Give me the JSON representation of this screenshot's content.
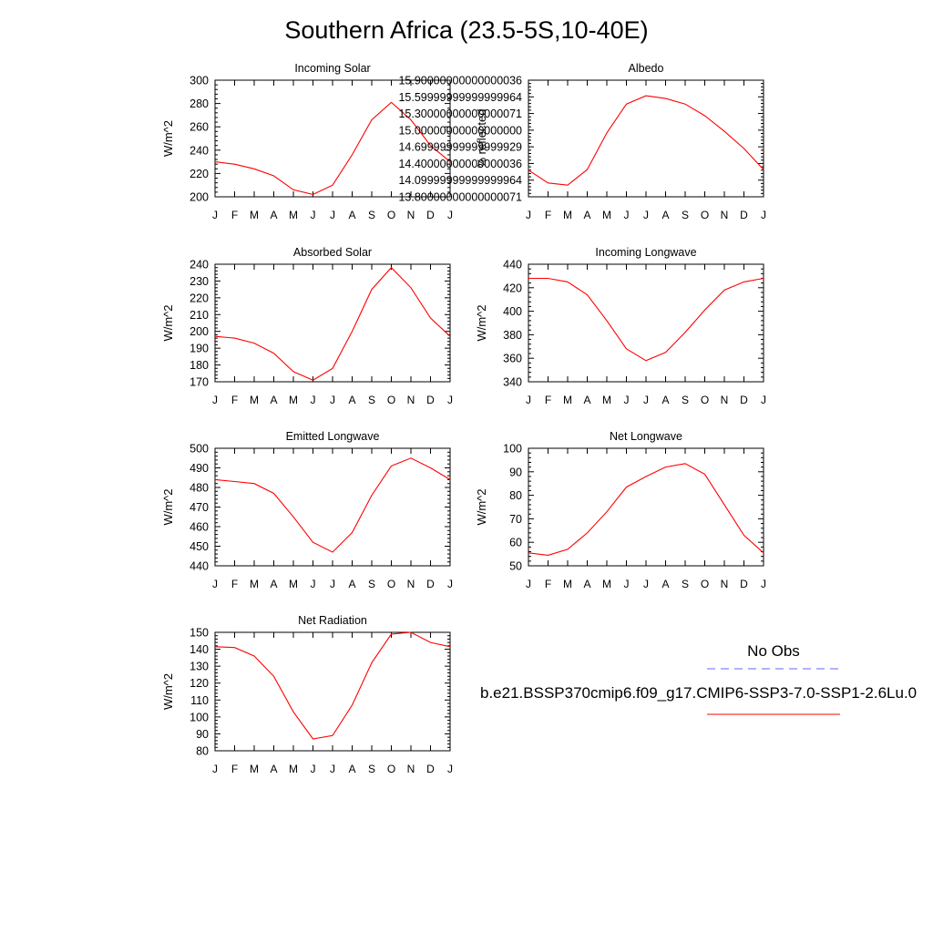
{
  "title": "Southern Africa (23.5-5S,10-40E)",
  "legend": {
    "obs_label": "No Obs",
    "obs_color": "#6666ff",
    "model_label": "b.e21.BSSP370cmip6.f09_g17.CMIP6-SSP3-7.0-SSP1-2.6Lu.0",
    "model_color": "#ff0000"
  },
  "chart_data": [
    {
      "type": "line",
      "title": "Incoming Solar",
      "ylabel": "W/m^2",
      "categories": [
        "J",
        "F",
        "M",
        "A",
        "M",
        "J",
        "J",
        "A",
        "S",
        "O",
        "N",
        "D",
        "J"
      ],
      "ylim": [
        200,
        300
      ],
      "yticks": [
        200,
        220,
        240,
        260,
        280,
        300
      ],
      "series": [
        {
          "values": [
            230,
            228,
            224,
            218,
            206,
            202,
            210,
            236,
            266,
            281,
            266,
            244,
            230
          ]
        }
      ]
    },
    {
      "type": "line",
      "title": "Albedo",
      "ylabel": "% reflected",
      "categories": [
        "J",
        "F",
        "M",
        "A",
        "M",
        "J",
        "J",
        "A",
        "S",
        "O",
        "N",
        "D",
        "J"
      ],
      "ylim": [
        13.8,
        15.9
      ],
      "yticks": [
        13.8,
        14.1,
        14.4,
        14.7,
        15.0,
        15.3,
        15.6,
        15.9
      ],
      "series": [
        {
          "values": [
            14.28,
            14.05,
            14.01,
            14.29,
            14.95,
            15.47,
            15.62,
            15.57,
            15.47,
            15.26,
            14.98,
            14.67,
            14.29
          ]
        }
      ]
    },
    {
      "type": "line",
      "title": "Absorbed Solar",
      "ylabel": "W/m^2",
      "categories": [
        "J",
        "F",
        "M",
        "A",
        "M",
        "J",
        "J",
        "A",
        "S",
        "O",
        "N",
        "D",
        "J"
      ],
      "ylim": [
        170,
        240
      ],
      "yticks": [
        170,
        180,
        190,
        200,
        210,
        220,
        230,
        240
      ],
      "series": [
        {
          "values": [
            197,
            196,
            193,
            187,
            176,
            171,
            178,
            200,
            225,
            238,
            226,
            208,
            197
          ]
        }
      ]
    },
    {
      "type": "line",
      "title": "Incoming Longwave",
      "ylabel": "W/m^2",
      "categories": [
        "J",
        "F",
        "M",
        "A",
        "M",
        "J",
        "J",
        "A",
        "S",
        "O",
        "N",
        "D",
        "J"
      ],
      "ylim": [
        340,
        440
      ],
      "yticks": [
        340,
        360,
        380,
        400,
        420,
        440
      ],
      "series": [
        {
          "values": [
            428,
            428,
            425,
            414,
            392,
            368,
            358,
            365,
            382,
            401,
            418,
            425,
            428
          ]
        }
      ]
    },
    {
      "type": "line",
      "title": "Emitted Longwave",
      "ylabel": "W/m^2",
      "categories": [
        "J",
        "F",
        "M",
        "A",
        "M",
        "J",
        "J",
        "A",
        "S",
        "O",
        "N",
        "D",
        "J"
      ],
      "ylim": [
        440,
        500
      ],
      "yticks": [
        440,
        450,
        460,
        470,
        480,
        490,
        500
      ],
      "series": [
        {
          "values": [
            484,
            483,
            482,
            477,
            465,
            452,
            447,
            457,
            476,
            491,
            495,
            490,
            484
          ]
        }
      ]
    },
    {
      "type": "line",
      "title": "Net Longwave",
      "ylabel": "W/m^2",
      "categories": [
        "J",
        "F",
        "M",
        "A",
        "M",
        "J",
        "J",
        "A",
        "S",
        "O",
        "N",
        "D",
        "J"
      ],
      "ylim": [
        50,
        100
      ],
      "yticks": [
        50,
        60,
        70,
        80,
        90,
        100
      ],
      "series": [
        {
          "values": [
            55.5,
            54.5,
            57,
            64,
            73,
            83.5,
            88,
            92,
            93.5,
            89,
            76,
            63,
            55.5
          ]
        }
      ]
    },
    {
      "type": "line",
      "title": "Net Radiation",
      "ylabel": "W/m^2",
      "categories": [
        "J",
        "F",
        "M",
        "A",
        "M",
        "J",
        "J",
        "A",
        "S",
        "O",
        "N",
        "D",
        "J"
      ],
      "ylim": [
        80,
        150
      ],
      "yticks": [
        80,
        90,
        100,
        110,
        120,
        130,
        140,
        150
      ],
      "series": [
        {
          "values": [
            141.5,
            141,
            136,
            124,
            103,
            87,
            89,
            107,
            132,
            149,
            150,
            144,
            141.5
          ]
        }
      ]
    }
  ]
}
